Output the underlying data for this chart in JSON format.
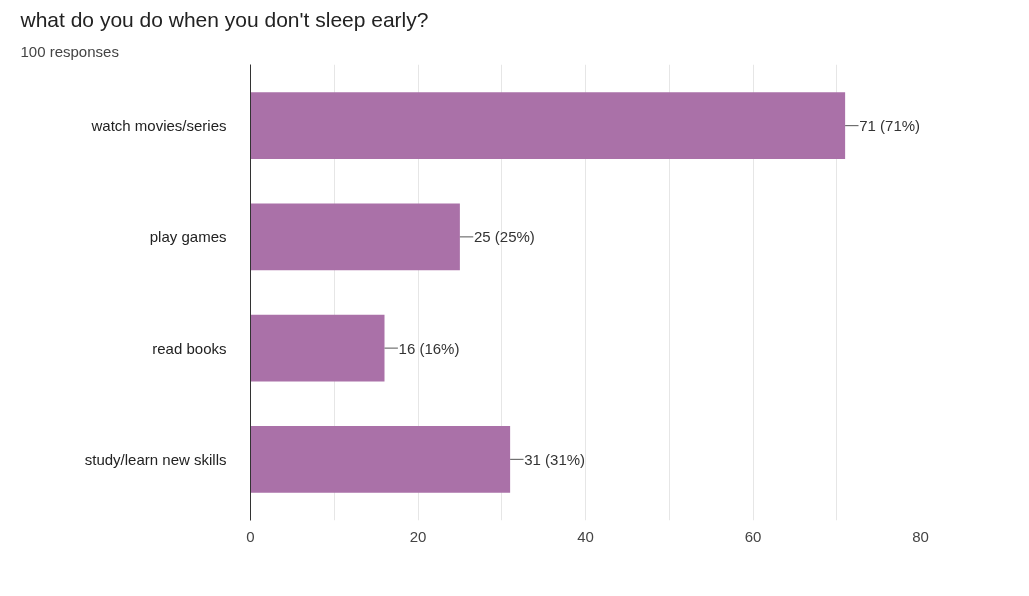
{
  "chart_data": {
    "type": "bar",
    "orientation": "horizontal",
    "title": "what do you do when you don't sleep early?",
    "subtitle": "100 responses",
    "categories": [
      "watch movies/series",
      "play games",
      "read books",
      "study/learn new skills"
    ],
    "values": [
      71,
      25,
      16,
      31
    ],
    "color": "#aa71a8",
    "value_labels": [
      "71 (71%)",
      "25 (25%)",
      "16 (16%)",
      "31 (31%)"
    ],
    "xlim": [
      0,
      80
    ],
    "xticks": [
      0,
      {
        "value": 10,
        "label": null
      },
      20,
      {
        "value": 30,
        "label": null
      },
      40,
      {
        "value": 50,
        "label": null
      },
      60,
      {
        "value": 70,
        "label": null
      },
      80
    ],
    "grid": "x"
  }
}
